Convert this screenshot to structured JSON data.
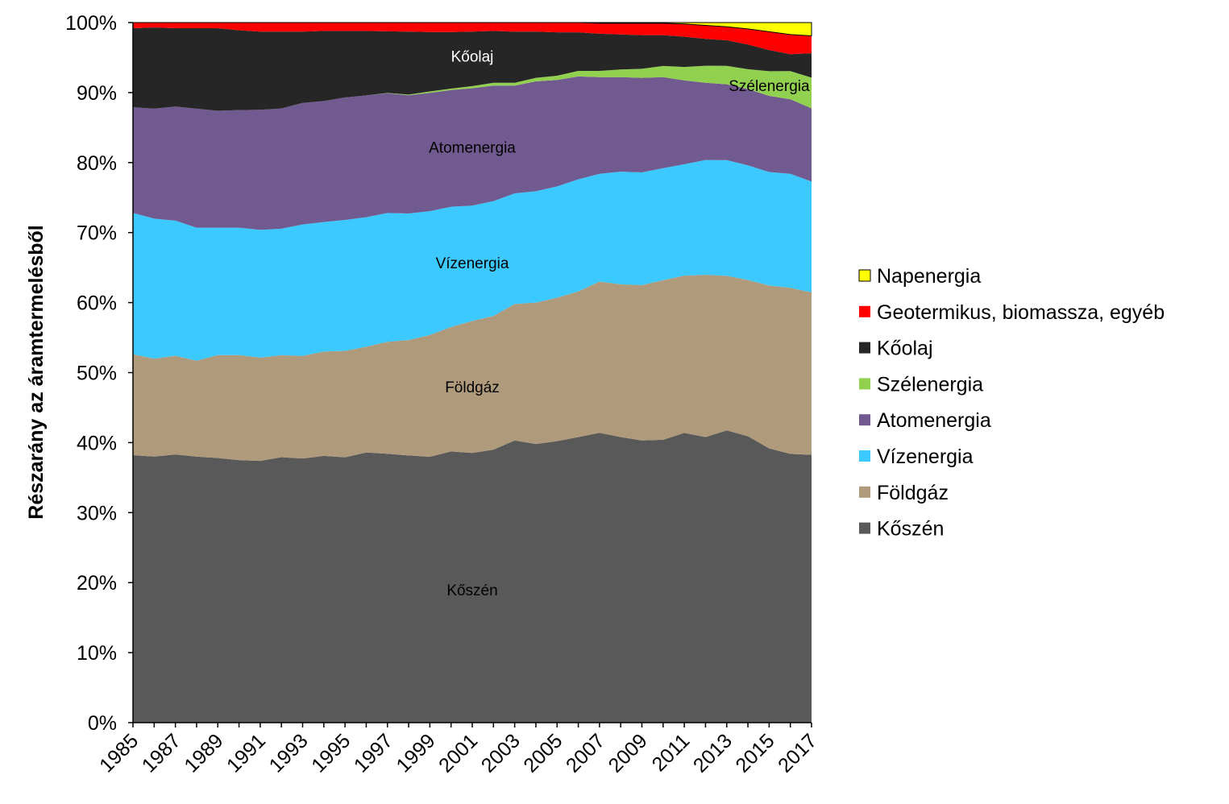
{
  "chart_data": {
    "type": "area",
    "stacked": true,
    "normalized": true,
    "xlabel": "",
    "ylabel": "Részarány az áramtermelésből",
    "ylim": [
      0,
      100
    ],
    "y_ticks": [
      "0%",
      "10%",
      "20%",
      "30%",
      "40%",
      "50%",
      "60%",
      "70%",
      "80%",
      "90%",
      "100%"
    ],
    "x_ticks": [
      "1985",
      "1987",
      "1989",
      "1991",
      "1993",
      "1995",
      "1997",
      "1999",
      "2001",
      "2003",
      "2005",
      "2007",
      "2009",
      "2011",
      "2013",
      "2015",
      "2017"
    ],
    "grid": false,
    "legend_position": "right",
    "x": [
      1985,
      1986,
      1987,
      1988,
      1989,
      1990,
      1991,
      1992,
      1993,
      1994,
      1995,
      1996,
      1997,
      1998,
      1999,
      2000,
      2001,
      2002,
      2003,
      2004,
      2005,
      2006,
      2007,
      2008,
      2009,
      2010,
      2011,
      2012,
      2013,
      2014,
      2015,
      2016,
      2017
    ],
    "series": [
      {
        "name": "Kőszén",
        "color": "#595959",
        "label_color": "#000000",
        "label_text": "Kőszén",
        "label_at": [
          2001,
          19
        ],
        "values": [
          38.2,
          38.0,
          38.3,
          38.0,
          37.8,
          37.5,
          37.5,
          38.0,
          37.8,
          38.1,
          37.9,
          38.6,
          38.4,
          38.2,
          38.0,
          38.8,
          38.6,
          39.0,
          40.3,
          39.8,
          40.2,
          40.8,
          41.4,
          40.8,
          40.3,
          40.4,
          41.1,
          40.3,
          41.2,
          40.5,
          38.9,
          38.2,
          38.4
        ]
      },
      {
        "name": "Földgáz",
        "color": "#b09a7c",
        "label_color": "#000000",
        "label_text": "Földgáz",
        "label_at": [
          2001,
          48
        ],
        "values": [
          14.4,
          14.0,
          14.1,
          13.7,
          14.7,
          15.0,
          14.8,
          14.6,
          14.7,
          14.9,
          15.2,
          15.1,
          16.0,
          16.5,
          17.4,
          17.8,
          18.9,
          19.1,
          19.5,
          20.2,
          20.5,
          20.8,
          21.6,
          21.8,
          22.2,
          22.8,
          22.3,
          22.9,
          21.8,
          22.1,
          23.1,
          23.6,
          23.3
        ]
      },
      {
        "name": "Vízenergia",
        "color": "#3bc9ff",
        "label_color": "#000000",
        "label_text": "Vízenergia",
        "label_at": [
          2001,
          65.7
        ],
        "values": [
          20.2,
          20.0,
          19.3,
          19.0,
          18.2,
          18.2,
          18.3,
          18.1,
          18.8,
          18.5,
          18.7,
          18.5,
          18.4,
          18.1,
          17.7,
          17.2,
          16.5,
          16.4,
          15.8,
          15.9,
          15.9,
          16.0,
          15.4,
          16.1,
          16.1,
          16.0,
          15.8,
          16.2,
          16.3,
          16.2,
          16.1,
          16.2,
          15.9
        ]
      },
      {
        "name": "Atomenergia",
        "color": "#715a8f",
        "label_color": "#000000",
        "label_text": "Atomenergia",
        "label_at": [
          2001,
          82.2
        ],
        "values": [
          15.1,
          15.7,
          16.3,
          17.0,
          16.7,
          16.8,
          17.2,
          17.2,
          17.4,
          17.3,
          17.5,
          17.4,
          17.1,
          16.9,
          16.9,
          16.7,
          16.8,
          16.5,
          15.4,
          15.7,
          15.2,
          14.7,
          13.8,
          13.5,
          13.5,
          13.0,
          11.9,
          10.9,
          10.7,
          10.8,
          10.8,
          10.6,
          10.5
        ]
      },
      {
        "name": "Szélenergia",
        "color": "#92d050",
        "label_color": "#000000",
        "label_text": "Szélenergia",
        "label_at": [
          2015,
          91
        ],
        "values": [
          0.0,
          0.0,
          0.0,
          0.0,
          0.0,
          0.0,
          0.0,
          0.0,
          0.0,
          0.0,
          0.0,
          0.0,
          0.05,
          0.1,
          0.2,
          0.2,
          0.3,
          0.4,
          0.4,
          0.5,
          0.6,
          0.8,
          0.9,
          1.1,
          1.3,
          1.6,
          1.9,
          2.4,
          2.6,
          2.8,
          3.5,
          4.0,
          4.4
        ]
      },
      {
        "name": "Kőolaj",
        "color": "#262626",
        "label_color": "#ffffff",
        "label_text": "Kőolaj",
        "label_at": [
          2001,
          95.2
        ],
        "values": [
          11.3,
          11.6,
          11.2,
          11.5,
          11.8,
          11.4,
          11.2,
          11.0,
          10.2,
          10.0,
          9.5,
          9.2,
          8.8,
          9.0,
          8.5,
          8.1,
          7.8,
          7.4,
          7.3,
          6.6,
          6.2,
          5.5,
          5.3,
          5.0,
          4.8,
          4.4,
          4.3,
          3.8,
          3.6,
          3.5,
          3.0,
          2.4,
          3.5
        ]
      },
      {
        "name": "Geotermikus, biomassza, egyéb",
        "color": "#ff0000",
        "values": [
          0.8,
          0.7,
          0.8,
          0.8,
          0.8,
          1.1,
          1.3,
          1.3,
          1.3,
          1.2,
          1.2,
          1.2,
          1.25,
          1.3,
          1.35,
          1.35,
          1.3,
          1.2,
          1.3,
          1.3,
          1.4,
          1.4,
          1.5,
          1.6,
          1.7,
          1.7,
          1.8,
          1.9,
          1.9,
          2.2,
          2.6,
          2.8,
          2.5
        ]
      },
      {
        "name": "Napenergia",
        "color": "#ffff00",
        "values": [
          0.0,
          0.0,
          0.0,
          0.0,
          0.0,
          0.0,
          0.0,
          0.0,
          0.0,
          0.0,
          0.0,
          0.0,
          0.0,
          0.0,
          0.0,
          0.0,
          0.0,
          0.0,
          0.0,
          0.0,
          0.0,
          0.0,
          0.1,
          0.1,
          0.1,
          0.1,
          0.2,
          0.4,
          0.6,
          0.9,
          1.3,
          1.7,
          1.9
        ]
      }
    ],
    "legend_order": [
      "Napenergia",
      "Geotermikus, biomassza, egyéb",
      "Kőolaj",
      "Szélenergia",
      "Atomenergia",
      "Vízenergia",
      "Földgáz",
      "Kőszén"
    ]
  }
}
